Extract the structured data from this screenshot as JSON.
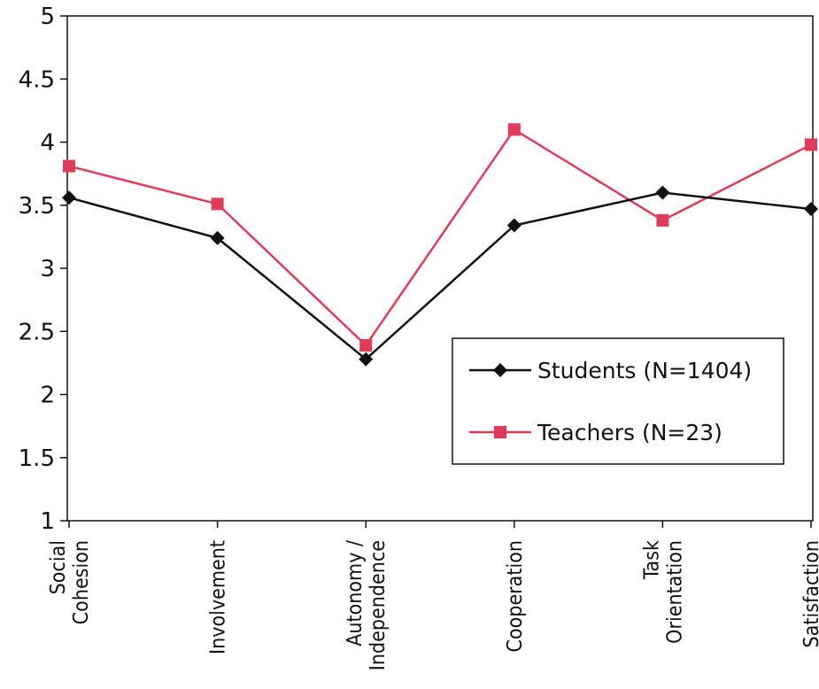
{
  "chart_data": {
    "type": "line",
    "categories": [
      [
        "Social",
        "Cohesion"
      ],
      [
        "Involvement"
      ],
      [
        "Autonomy /",
        "Independence"
      ],
      [
        "Cooperation"
      ],
      [
        "Task",
        "Orientation"
      ],
      [
        "Satisfaction"
      ]
    ],
    "series": [
      {
        "name": "Students (N=1404)",
        "values": [
          3.56,
          3.24,
          2.28,
          3.34,
          3.6,
          3.47
        ],
        "color": "#111111",
        "marker": "diamond"
      },
      {
        "name": "Teachers (N=23)",
        "values": [
          3.81,
          3.51,
          2.39,
          4.1,
          3.38,
          3.98
        ],
        "color": "#e23b5a",
        "marker": "square"
      }
    ],
    "yticks": [
      "1",
      "1.5",
      "2",
      "2.5",
      "3",
      "3.5",
      "4",
      "4.5",
      "5"
    ],
    "ylim": [
      1,
      5
    ],
    "title": "",
    "xlabel": "",
    "ylabel": "",
    "grid": false,
    "legend_position": "lower-right"
  }
}
